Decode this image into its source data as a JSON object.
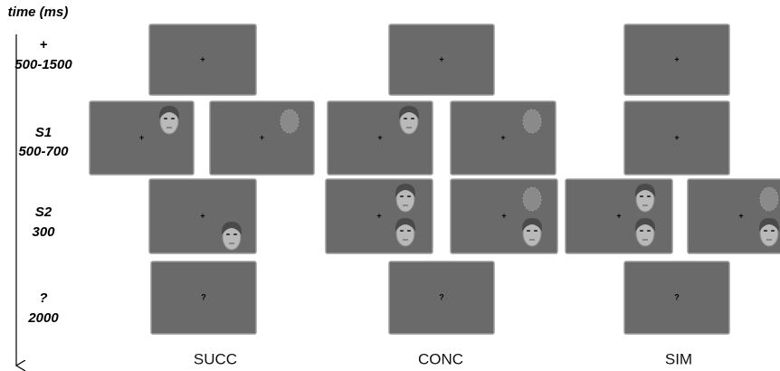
{
  "time_label": "time (ms)",
  "rows": [
    {
      "label": "+",
      "duration": "500-1500"
    },
    {
      "label": "S1",
      "duration": "500-700"
    },
    {
      "label": "S2",
      "duration": "300"
    },
    {
      "label": "?",
      "duration": "2000"
    }
  ],
  "conditions": [
    "SUCC",
    "CONC",
    "SIM"
  ],
  "screen_symbols": {
    "fixation": "+",
    "prompt": "?"
  }
}
